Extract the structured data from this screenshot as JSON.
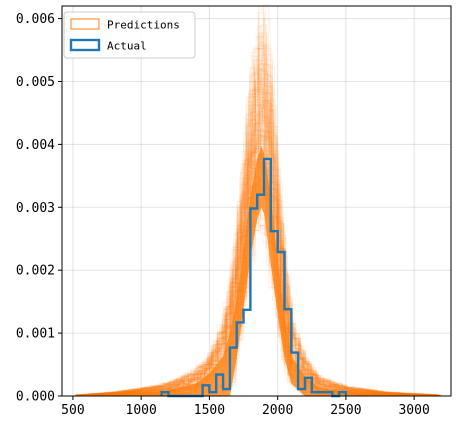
{
  "chart_data": {
    "type": "histogram",
    "title": "",
    "xlabel": "",
    "ylabel": "",
    "xlim": [
      420,
      3270
    ],
    "ylim": [
      0,
      0.0062
    ],
    "xticks": [
      500,
      1000,
      1500,
      2000,
      2500,
      3000
    ],
    "yticks": [
      0.0,
      0.001,
      0.002,
      0.003,
      0.004,
      0.005,
      0.006
    ],
    "xtick_labels": [
      "500",
      "1000",
      "1500",
      "2000",
      "2500",
      "3000"
    ],
    "ytick_labels": [
      "0.000",
      "0.001",
      "0.002",
      "0.003",
      "0.004",
      "0.005",
      "0.006"
    ],
    "grid": true,
    "legend_position": "upper-left",
    "series": [
      {
        "name": "Predictions",
        "style": "many semi-transparent step histograms",
        "color": "#ff7f0e",
        "x": [
          560,
          800,
          1000,
          1200,
          1400,
          1500,
          1600,
          1650,
          1700,
          1750,
          1800,
          1850,
          1880,
          1900,
          1950,
          2000,
          2050,
          2100,
          2200,
          2300,
          2500,
          2800,
          3150
        ],
        "upper": [
          2e-05,
          6e-05,
          0.00012,
          0.0002,
          0.0004,
          0.0006,
          0.0011,
          0.0016,
          0.0024,
          0.0034,
          0.0045,
          0.0053,
          0.0058,
          0.0057,
          0.0048,
          0.0034,
          0.0022,
          0.0012,
          0.0006,
          0.0003,
          0.00015,
          6e-05,
          2e-05
        ],
        "lower": [
          0,
          0,
          0,
          0,
          0,
          0,
          0,
          0,
          0.0006,
          0.0014,
          0.0022,
          0.0028,
          0.003,
          0.0029,
          0.0021,
          0.0013,
          0.0006,
          0.0002,
          0,
          0,
          0,
          0,
          0
        ],
        "typical": [
          1e-05,
          3e-05,
          6e-05,
          0.0001,
          0.00022,
          0.0004,
          0.0007,
          0.0011,
          0.0017,
          0.0026,
          0.0035,
          0.0042,
          0.0044,
          0.0043,
          0.0035,
          0.0024,
          0.0014,
          0.0007,
          0.00035,
          0.00015,
          7e-05,
          3e-05,
          1e-05
        ]
      },
      {
        "name": "Actual",
        "style": "step histogram",
        "color": "#1f77b4",
        "bin_edges": [
          1150,
          1200,
          1250,
          1300,
          1350,
          1400,
          1450,
          1500,
          1550,
          1600,
          1650,
          1700,
          1750,
          1800,
          1850,
          1900,
          1950,
          2000,
          2050,
          2100,
          2150,
          2200,
          2250,
          2300,
          2350,
          2400,
          2450,
          2500
        ],
        "values": [
          6e-05,
          0,
          0,
          0,
          0,
          0,
          0.00017,
          6e-05,
          0.00034,
          0.00011,
          0.00077,
          0.00117,
          0.00137,
          0.00298,
          0.0032,
          0.00377,
          0.00262,
          0.00229,
          0.00138,
          0.00069,
          0.00011,
          0.00029,
          6e-05,
          6e-05,
          6e-05,
          0,
          6e-05
        ]
      }
    ]
  }
}
